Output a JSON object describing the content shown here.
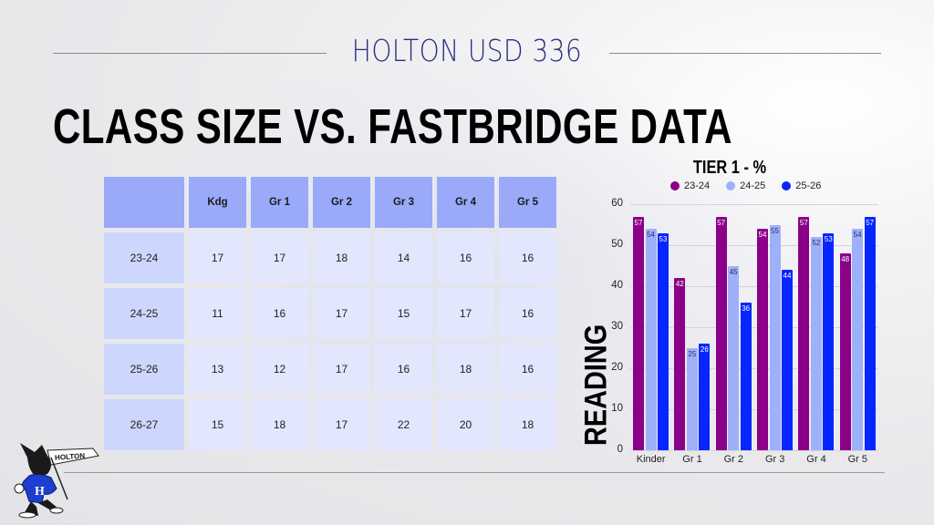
{
  "header": {
    "brand": "HOLTON USD 336",
    "title": "CLASS SIZE VS. FASTBRIDGE DATA"
  },
  "class_size_table": {
    "columns": [
      "",
      "Kdg",
      "Gr 1",
      "Gr 2",
      "Gr 3",
      "Gr 4",
      "Gr 5"
    ],
    "rows": [
      {
        "year": "23-24",
        "values": [
          "17",
          "17",
          "18",
          "14",
          "16",
          "16"
        ]
      },
      {
        "year": "24-25",
        "values": [
          "11",
          "16",
          "17",
          "15",
          "17",
          "16"
        ]
      },
      {
        "year": "25-26",
        "values": [
          "13",
          "12",
          "17",
          "16",
          "18",
          "16"
        ]
      },
      {
        "year": "26-27",
        "values": [
          "15",
          "18",
          "17",
          "22",
          "20",
          "18"
        ]
      }
    ]
  },
  "colors": {
    "series_23_24": "#8b0089",
    "series_24_25": "#9fb0fb",
    "series_25_26": "#0626ff",
    "table_header": "#9aaaf9",
    "table_rowhead": "#cdd6fc",
    "table_cell": "#e2e7fd",
    "brand_text": "#2a2f7a"
  },
  "logo": {
    "banner_text": "HOLTON",
    "shirt_letter": "H"
  },
  "chart_data": {
    "type": "bar",
    "title": "TIER 1 - %",
    "xlabel": "",
    "ylabel": "READING",
    "ylim": [
      0,
      60
    ],
    "yticks": [
      "0",
      "10",
      "20",
      "30",
      "40",
      "50",
      "60"
    ],
    "grid": true,
    "legend_position": "top",
    "categories": [
      "Kinder",
      "Gr 1",
      "Gr 2",
      "Gr 3",
      "Gr 4",
      "Gr 5"
    ],
    "series": [
      {
        "name": "23-24",
        "values": [
          57,
          42,
          57,
          54,
          57,
          48
        ]
      },
      {
        "name": "24-25",
        "values": [
          54,
          25,
          45,
          55,
          52,
          54
        ]
      },
      {
        "name": "25-26",
        "values": [
          53,
          26,
          36,
          44,
          53,
          57
        ]
      }
    ]
  }
}
